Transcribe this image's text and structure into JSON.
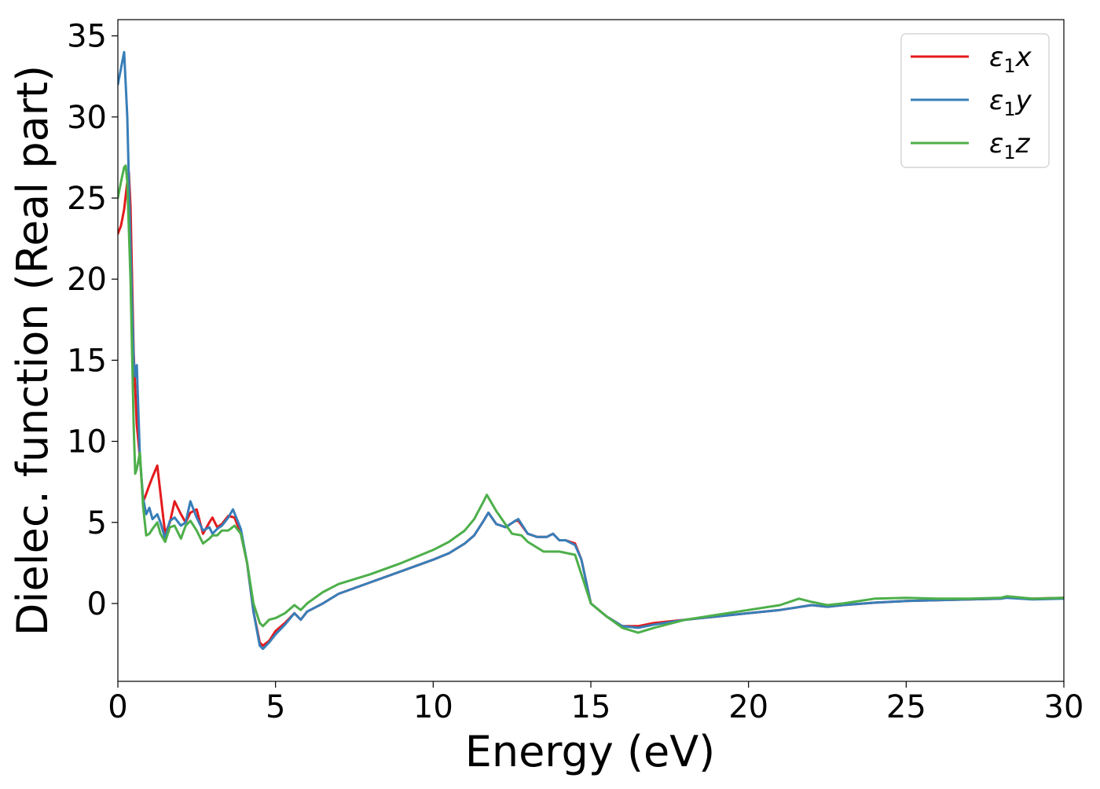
{
  "chart_data": {
    "type": "line",
    "title": "",
    "xlabel": "Energy (eV)",
    "ylabel": "Dielec. function (Real part)",
    "xlim": [
      0,
      30
    ],
    "ylim": [
      -4.8,
      36
    ],
    "xticks": [
      0,
      5,
      10,
      15,
      20,
      25,
      30
    ],
    "xtick_labels": [
      "0",
      "5",
      "10",
      "15",
      "20",
      "25",
      "30"
    ],
    "yticks": [
      0,
      5,
      10,
      15,
      20,
      25,
      30,
      35
    ],
    "ytick_labels": [
      "0",
      "5",
      "10",
      "15",
      "20",
      "25",
      "30",
      "35"
    ],
    "grid": false,
    "legend": {
      "placement": "top-right",
      "frame": true
    },
    "series": [
      {
        "name": "ε1x",
        "legend_base": "ε",
        "legend_sub": "1",
        "legend_tail": "x",
        "color": "#e41a1c",
        "x": [
          0,
          0.1,
          0.2,
          0.3,
          0.35,
          0.4,
          0.5,
          0.6,
          0.7,
          0.8,
          0.85,
          1.0,
          1.1,
          1.25,
          1.35,
          1.5,
          1.65,
          1.8,
          2.0,
          2.15,
          2.3,
          2.5,
          2.7,
          2.9,
          3.0,
          3.15,
          3.3,
          3.5,
          3.7,
          3.9,
          4.1,
          4.3,
          4.5,
          4.6,
          4.8,
          5.0,
          5.3,
          5.6,
          5.8,
          6.0,
          6.5,
          7.0,
          8.0,
          9.0,
          10.0,
          10.5,
          11.0,
          11.3,
          11.6,
          11.75,
          12.0,
          12.3,
          12.6,
          12.7,
          13.0,
          13.3,
          13.6,
          13.8,
          14.0,
          14.2,
          14.5,
          14.7,
          15.0,
          15.5,
          16.0,
          16.5,
          17.0,
          18.0,
          19.0,
          20.0,
          21.0,
          22.0,
          22.5,
          23.0,
          24.0,
          25.0,
          26.0,
          27.0,
          28.0,
          28.2,
          29.0,
          30.0
        ],
        "y": [
          22.8,
          23.3,
          24.3,
          26.0,
          26.6,
          24.5,
          15.5,
          11.0,
          9.0,
          6.3,
          6.5,
          7.3,
          7.8,
          8.5,
          6.8,
          4.3,
          5.0,
          6.3,
          5.5,
          5.0,
          5.6,
          5.8,
          4.3,
          5.0,
          5.3,
          4.7,
          4.9,
          5.4,
          5.3,
          4.3,
          2.5,
          -0.5,
          -2.4,
          -2.6,
          -2.3,
          -1.7,
          -1.2,
          -0.6,
          -1.0,
          -0.5,
          0.0,
          0.6,
          1.3,
          2.0,
          2.7,
          3.1,
          3.7,
          4.2,
          5.1,
          5.6,
          4.9,
          4.7,
          5.1,
          5.1,
          4.3,
          4.1,
          4.1,
          4.3,
          3.9,
          3.9,
          3.7,
          2.7,
          0.0,
          -0.8,
          -1.4,
          -1.4,
          -1.2,
          -1.0,
          -0.8,
          -0.6,
          -0.4,
          -0.1,
          -0.2,
          -0.1,
          0.05,
          0.15,
          0.2,
          0.25,
          0.3,
          0.4,
          0.3,
          0.35
        ]
      },
      {
        "name": "ε1y",
        "legend_base": "ε",
        "legend_sub": "1",
        "legend_tail": "y",
        "color": "#377eb8",
        "x": [
          0,
          0.1,
          0.2,
          0.3,
          0.4,
          0.5,
          0.55,
          0.6,
          0.7,
          0.8,
          0.9,
          1.0,
          1.1,
          1.25,
          1.35,
          1.5,
          1.65,
          1.8,
          2.0,
          2.15,
          2.3,
          2.5,
          2.7,
          2.9,
          3.0,
          3.15,
          3.3,
          3.5,
          3.65,
          3.9,
          4.1,
          4.3,
          4.5,
          4.6,
          4.8,
          5.0,
          5.3,
          5.6,
          5.8,
          6.0,
          6.5,
          7.0,
          8.0,
          9.0,
          10.0,
          10.5,
          11.0,
          11.3,
          11.6,
          11.75,
          12.0,
          12.3,
          12.6,
          12.7,
          13.0,
          13.3,
          13.6,
          13.8,
          14.0,
          14.2,
          14.5,
          14.7,
          15.0,
          15.5,
          16.0,
          16.5,
          17.0,
          18.0,
          19.0,
          20.0,
          21.0,
          22.0,
          22.5,
          23.0,
          24.0,
          25.0,
          26.0,
          27.0,
          28.0,
          28.2,
          29.0,
          30.0
        ],
        "y": [
          32.0,
          33.0,
          34.0,
          30.0,
          22.0,
          15.0,
          14.0,
          14.7,
          9.0,
          6.5,
          5.5,
          5.9,
          5.2,
          5.5,
          5.0,
          4.0,
          5.1,
          5.3,
          4.8,
          5.0,
          6.3,
          5.3,
          4.5,
          4.7,
          4.3,
          4.6,
          4.8,
          5.3,
          5.8,
          4.6,
          2.5,
          -0.5,
          -2.6,
          -2.8,
          -2.4,
          -1.9,
          -1.3,
          -0.6,
          -1.0,
          -0.5,
          0.0,
          0.6,
          1.3,
          2.0,
          2.7,
          3.1,
          3.7,
          4.2,
          5.1,
          5.6,
          4.9,
          4.7,
          5.1,
          5.2,
          4.3,
          4.1,
          4.1,
          4.3,
          3.9,
          3.9,
          3.6,
          2.7,
          0.0,
          -0.8,
          -1.4,
          -1.5,
          -1.3,
          -1.0,
          -0.8,
          -0.6,
          -0.4,
          -0.1,
          -0.2,
          -0.1,
          0.05,
          0.15,
          0.2,
          0.25,
          0.3,
          0.35,
          0.25,
          0.3
        ]
      },
      {
        "name": "ε1z",
        "legend_base": "ε",
        "legend_sub": "1",
        "legend_tail": "z",
        "color": "#4daf4a",
        "x": [
          0,
          0.1,
          0.2,
          0.25,
          0.3,
          0.4,
          0.5,
          0.55,
          0.6,
          0.7,
          0.8,
          0.9,
          1.0,
          1.1,
          1.25,
          1.35,
          1.5,
          1.65,
          1.8,
          2.0,
          2.15,
          2.3,
          2.5,
          2.7,
          2.9,
          3.0,
          3.15,
          3.3,
          3.5,
          3.7,
          3.9,
          4.1,
          4.3,
          4.5,
          4.6,
          4.8,
          5.0,
          5.3,
          5.6,
          5.8,
          6.0,
          6.5,
          7.0,
          8.0,
          9.0,
          10.0,
          10.5,
          11.0,
          11.3,
          11.6,
          11.7,
          12.0,
          12.5,
          12.8,
          13.0,
          13.5,
          14.0,
          14.5,
          15.0,
          15.5,
          16.0,
          16.5,
          17.0,
          18.0,
          19.0,
          20.0,
          21.0,
          21.6,
          22.0,
          22.5,
          23.0,
          24.0,
          25.0,
          26.0,
          27.0,
          28.0,
          28.2,
          29.0,
          30.0
        ],
        "y": [
          25.0,
          26.0,
          26.9,
          27.0,
          26.0,
          20.0,
          11.0,
          8.0,
          8.3,
          9.3,
          6.0,
          4.2,
          4.3,
          4.6,
          5.0,
          4.3,
          3.8,
          4.7,
          4.8,
          4.0,
          4.8,
          5.1,
          4.5,
          3.7,
          4.0,
          4.2,
          4.2,
          4.5,
          4.5,
          4.8,
          4.3,
          2.5,
          0.0,
          -1.2,
          -1.4,
          -1.0,
          -0.9,
          -0.6,
          -0.1,
          -0.4,
          0.0,
          0.7,
          1.2,
          1.8,
          2.5,
          3.3,
          3.8,
          4.5,
          5.2,
          6.3,
          6.7,
          5.7,
          4.3,
          4.2,
          3.8,
          3.2,
          3.2,
          3.0,
          0.0,
          -0.8,
          -1.5,
          -1.8,
          -1.5,
          -1.0,
          -0.7,
          -0.4,
          -0.1,
          0.3,
          0.1,
          -0.1,
          0.0,
          0.3,
          0.35,
          0.3,
          0.3,
          0.35,
          0.45,
          0.3,
          0.35
        ]
      }
    ]
  }
}
